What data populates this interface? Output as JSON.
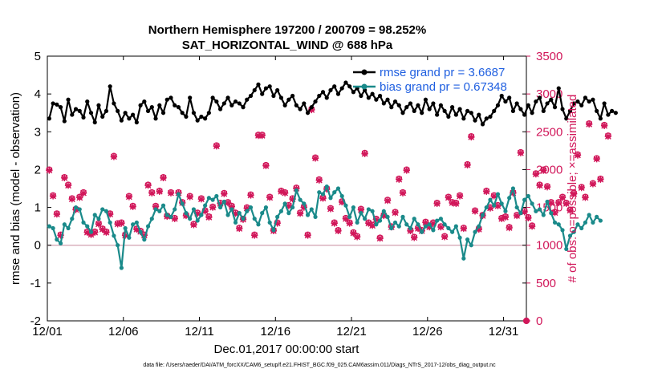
{
  "chart_data": {
    "type": "line",
    "title": "Northern Hemisphere 197200 / 200709 = 98.252%",
    "subtitle": "SAT_HORIZONTAL_WIND @ 688 hPa",
    "xlabel": "Dec.01,2017 00:00:00 start",
    "ylabel": "rmse and bias (model - observation)",
    "y2label": "# of obs: o=possible; ×=assimilated",
    "xlim": [
      0,
      31.5
    ],
    "ylim": [
      -2,
      5
    ],
    "y2lim": [
      0,
      3500
    ],
    "x_ticks": [
      {
        "value": 0,
        "label": "12/01"
      },
      {
        "value": 5,
        "label": "12/06"
      },
      {
        "value": 10,
        "label": "12/11"
      },
      {
        "value": 15,
        "label": "12/16"
      },
      {
        "value": 20,
        "label": "12/21"
      },
      {
        "value": 25,
        "label": "12/26"
      },
      {
        "value": 30,
        "label": "12/31"
      }
    ],
    "y_ticks": [
      "-2",
      "-1",
      "0",
      "1",
      "2",
      "3",
      "4",
      "5"
    ],
    "y2_ticks": [
      "0",
      "500",
      "1000",
      "1500",
      "2000",
      "2500",
      "3000",
      "3500"
    ],
    "zero_line": 0,
    "bin_width_days": 0.25,
    "series": [
      {
        "name": "rmse grand pr = 3.6687",
        "axis": "left",
        "color": "#000000",
        "marker": "dot",
        "values": [
          3.35,
          3.75,
          3.72,
          3.65,
          3.28,
          3.85,
          3.45,
          3.6,
          3.55,
          3.38,
          3.8,
          3.5,
          3.25,
          3.7,
          3.4,
          3.55,
          4.2,
          3.75,
          3.55,
          3.3,
          3.5,
          3.35,
          3.45,
          3.25,
          3.7,
          3.8,
          3.55,
          3.65,
          3.35,
          3.7,
          3.5,
          3.85,
          3.9,
          3.7,
          3.65,
          3.5,
          3.4,
          3.9,
          3.5,
          3.3,
          3.4,
          3.35,
          3.5,
          3.9,
          3.8,
          3.6,
          3.75,
          3.9,
          3.7,
          3.8,
          3.75,
          3.65,
          3.85,
          3.95,
          4.1,
          4.25,
          4.0,
          4.15,
          4.2,
          3.95,
          4.1,
          3.9,
          3.7,
          3.85,
          3.95,
          3.7,
          3.6,
          3.75,
          3.5,
          3.65,
          3.8,
          3.95,
          4.05,
          3.9,
          4.1,
          4.2,
          4.0,
          4.15,
          4.3,
          4.2,
          4.05,
          4.15,
          3.95,
          4.1,
          3.9,
          4.0,
          3.85,
          3.95,
          3.75,
          3.85,
          3.65,
          3.8,
          3.7,
          3.5,
          3.65,
          3.75,
          3.55,
          3.7,
          3.5,
          3.85,
          3.6,
          3.75,
          3.45,
          3.7,
          3.55,
          3.4,
          3.65,
          3.45,
          3.6,
          3.35,
          3.55,
          3.5,
          3.3,
          3.45,
          3.2,
          3.35,
          3.4,
          3.55,
          3.7,
          3.95,
          3.8,
          3.9,
          3.55,
          3.75,
          3.6,
          3.45,
          3.7,
          3.5,
          3.8,
          3.9,
          3.55,
          3.75,
          3.85,
          3.65,
          4.15,
          3.6,
          3.35,
          3.55,
          3.75,
          3.8,
          3.7,
          3.9,
          3.8,
          3.85,
          3.55,
          3.35,
          3.75,
          3.45,
          3.55,
          3.5
        ]
      },
      {
        "name": "bias grand pr = 0.67348",
        "axis": "left",
        "color": "#1a8a8a",
        "marker": "dot",
        "values": [
          0.5,
          0.45,
          0.15,
          0.05,
          0.55,
          0.45,
          0.7,
          1.0,
          0.95,
          0.6,
          0.5,
          0.35,
          0.8,
          0.7,
          0.95,
          0.9,
          0.6,
          0.25,
          0.0,
          -0.6,
          0.45,
          0.2,
          0.55,
          0.6,
          0.35,
          0.15,
          0.5,
          0.7,
          0.95,
          0.9,
          1.05,
          0.8,
          0.75,
          0.95,
          1.35,
          1.1,
          0.85,
          0.7,
          0.95,
          0.65,
          0.8,
          1.05,
          1.25,
          1.2,
          1.3,
          1.0,
          1.15,
          0.8,
          0.95,
          0.6,
          0.85,
          0.7,
          0.9,
          1.0,
          0.7,
          0.55,
          0.85,
          1.0,
          0.6,
          0.4,
          0.75,
          0.9,
          1.1,
          0.85,
          1.0,
          1.45,
          1.2,
          1.1,
          0.8,
          0.95,
          0.75,
          1.4,
          1.35,
          1.55,
          1.25,
          1.4,
          1.5,
          1.3,
          1.05,
          0.75,
          1.0,
          0.6,
          0.85,
          0.7,
          0.95,
          0.9,
          0.55,
          0.65,
          0.9,
          0.75,
          0.45,
          0.6,
          0.5,
          0.75,
          0.55,
          0.45,
          0.7,
          0.55,
          0.35,
          0.5,
          0.55,
          0.4,
          0.65,
          0.7,
          0.55,
          0.45,
          0.35,
          0.5,
          0.2,
          -0.35,
          0.15,
          0.0,
          0.35,
          0.5,
          0.8,
          1.0,
          1.2,
          1.05,
          1.35,
          1.1,
          0.9,
          1.25,
          1.5,
          1.0,
          0.85,
          1.2,
          1.3,
          1.1,
          0.9,
          0.95,
          0.8,
          1.15,
          0.85,
          0.6,
          0.55,
          0.4,
          -0.1,
          0.25,
          0.35,
          0.55,
          0.45,
          0.6,
          0.8,
          0.6,
          0.75,
          0.65
        ]
      },
      {
        "name": "observations possible",
        "axis": "right",
        "color": "#d1175a",
        "marker": "o",
        "counts": [
          2000,
          1660,
          1420,
          1140,
          1900,
          1800,
          1620,
          1480,
          1640,
          1700,
          1180,
          1150,
          1180,
          1290,
          1220,
          1180,
          1420,
          2180,
          1290,
          1300,
          1140,
          1650,
          1520,
          1220,
          1190,
          1140,
          1800,
          1700,
          1520,
          1720,
          1900,
          1390,
          1700,
          1360,
          1700,
          1570,
          1400,
          1650,
          1280,
          1430,
          1620,
          1460,
          1380,
          1510,
          2320,
          1560,
          1690,
          1570,
          1520,
          1430,
          1230,
          1350,
          1500,
          1670,
          1140,
          2460,
          2460,
          2060,
          1640,
          1200,
          1300,
          1720,
          1700,
          1530,
          1620,
          1760,
          1430,
          1510,
          1140,
          2800,
          2160,
          1870,
          1630,
          1750,
          1490,
          1300,
          1200,
          1580,
          1360,
          1300,
          1170,
          1120,
          1480,
          2220,
          1300,
          1270,
          1350,
          1100,
          1400,
          1600,
          1250,
          1440,
          1880,
          1700,
          2000,
          1200,
          1110,
          1230,
          1200,
          1310,
          1250,
          1300,
          1560,
          1250,
          1120,
          1640,
          1570,
          1560,
          1660,
          1230,
          2070,
          2440,
          1460,
          1220,
          1400,
          1720,
          1500,
          1660,
          1530,
          1360,
          1380,
          1240,
          1700,
          1400,
          2230,
          1450,
          1370,
          1260,
          1950,
          1800,
          2000,
          1780,
          1570,
          1440,
          1570,
          1640,
          1560,
          1470,
          1690,
          2200,
          1770,
          1640,
          2610,
          1820,
          2150,
          1880,
          2590,
          2450
        ]
      },
      {
        "name": "observations assimilated",
        "axis": "right",
        "color": "#d1175a",
        "marker": "x",
        "counts": [
          1990,
          1650,
          1410,
          1130,
          1890,
          1790,
          1610,
          1470,
          1630,
          1690,
          1170,
          1140,
          1170,
          1280,
          1210,
          1170,
          1410,
          2170,
          1280,
          1290,
          1130,
          1640,
          1510,
          1210,
          1180,
          1130,
          1790,
          1690,
          1510,
          1710,
          1890,
          1380,
          1690,
          1350,
          1690,
          1560,
          1390,
          1640,
          1270,
          1420,
          1610,
          1450,
          1370,
          1500,
          2310,
          1550,
          1680,
          1560,
          1510,
          1420,
          1220,
          1340,
          1490,
          1660,
          1130,
          2450,
          2450,
          2050,
          1630,
          1190,
          1290,
          1710,
          1690,
          1520,
          1610,
          1750,
          1420,
          1500,
          1130,
          2790,
          2150,
          1860,
          1620,
          1740,
          1480,
          1290,
          1190,
          1570,
          1350,
          1290,
          1160,
          1110,
          1470,
          2210,
          1290,
          1260,
          1340,
          1090,
          1390,
          1590,
          1240,
          1430,
          1870,
          1690,
          1990,
          1190,
          1100,
          1220,
          1190,
          1300,
          1240,
          1290,
          1550,
          1240,
          1110,
          1630,
          1560,
          1550,
          1650,
          1220,
          2060,
          2430,
          1450,
          1210,
          1390,
          1710,
          1490,
          1650,
          1520,
          1350,
          1370,
          1230,
          1690,
          1390,
          2220,
          1440,
          1360,
          1250,
          1940,
          1790,
          1990,
          1770,
          1560,
          1430,
          1560,
          1630,
          1550,
          1460,
          1680,
          2190,
          1760,
          1630,
          2600,
          1810,
          2140,
          1870,
          2580,
          2440
        ]
      }
    ],
    "endpoint_marker": {
      "x": 31.5,
      "y2": 0,
      "color": "#d1175a"
    },
    "legend": "top-right",
    "grid": false
  },
  "footer": "data file: /Users/raeder/DAI/ATM_forcXX/CAM6_setup/f.e21.FHIST_BGC.f09_025.CAM6assim.011/Diags_NTrS_2017-12/obs_diag_output.nc"
}
